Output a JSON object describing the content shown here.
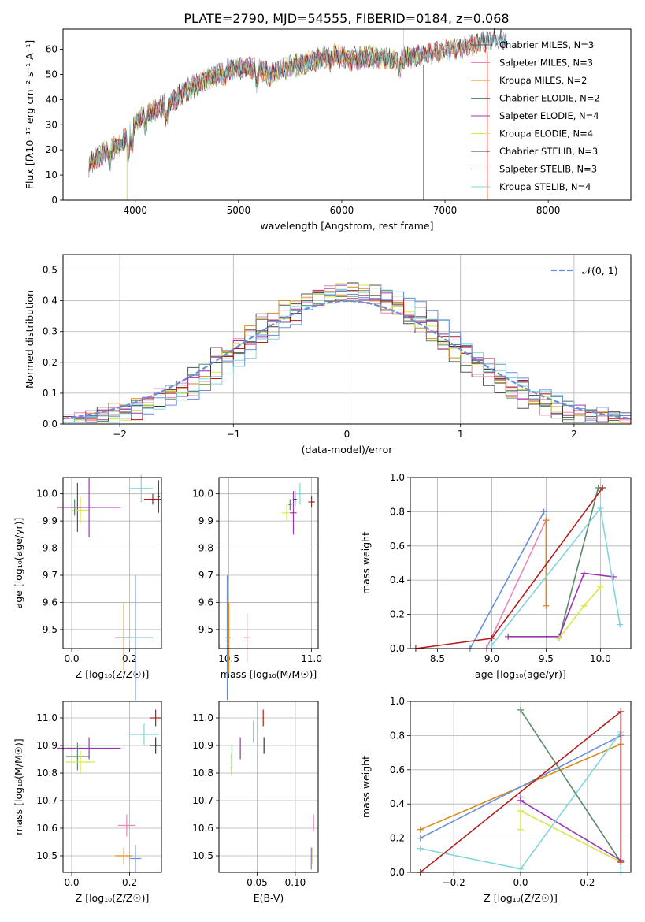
{
  "title": "PLATE=2790, MJD=54555, FIBERID=0184, z=0.068",
  "palette": [
    "#555555",
    "#e987b7",
    "#d98a1a",
    "#5c8a66",
    "#9b35b5",
    "#d7e64a",
    "#3a3a3a",
    "#b31d1d",
    "#7fd6dc"
  ],
  "chart_data": [
    {
      "type": "line",
      "id": "spectrum",
      "xlabel": "wavelength [Angstrom, rest frame]",
      "ylabel": "Flux [fλ10⁻¹⁷ erg cm⁻² s⁻¹ A⁻¹]",
      "xlim": [
        3300,
        8800
      ],
      "ylim": [
        0,
        68
      ],
      "xticks": [
        4000,
        5000,
        6000,
        7000,
        8000
      ],
      "yticks": [
        0,
        10,
        20,
        30,
        40,
        50,
        60
      ],
      "grid": false,
      "legend_position": "right",
      "continuum": {
        "x": [
          3550,
          3700,
          3850,
          3950,
          4050,
          4200,
          4350,
          4500,
          4700,
          4900,
          5100,
          5300,
          5500,
          5700,
          5900,
          6100,
          6300,
          6500,
          6700,
          6900,
          7100,
          7300,
          7500
        ],
        "y": [
          14,
          19,
          22,
          27,
          33,
          36,
          39,
          44,
          48,
          52,
          53,
          50,
          53,
          55,
          58,
          56,
          57,
          56,
          57,
          59,
          60,
          62,
          64
        ]
      },
      "series": [
        {
          "name": "Chabrier MILES, N_SSP=3",
          "color": "#555555",
          "x_end": 7600
        },
        {
          "name": "Salpeter MILES, N_SSP=3",
          "color": "#e987b7",
          "x_end": 7600
        },
        {
          "name": "Kroupa MILES, N_SSP=2",
          "color": "#d98a1a",
          "x_end": 7400
        },
        {
          "name": "Chabrier ELODIE, N_SSP=2",
          "color": "#5c8a66",
          "x_end": 6780
        },
        {
          "name": "Salpeter ELODIE, N_SSP=4",
          "color": "#9b35b5",
          "x_end": 6780
        },
        {
          "name": "Kroupa ELODIE, N_SSP=4",
          "color": "#d7e64a",
          "x_end": 6780
        },
        {
          "name": "Chabrier STELIB, N_SSP=3",
          "color": "#3a3a3a",
          "x_end": 7600
        },
        {
          "name": "Salpeter STELIB, N_SSP=3",
          "color": "#b31d1d",
          "x_end": 7400
        },
        {
          "name": "Kroupa STELIB, N_SSP=4",
          "color": "#7fd6dc",
          "x_end": 7600
        }
      ]
    },
    {
      "type": "line",
      "id": "residuals",
      "xlabel": "(data-model)/error",
      "ylabel": "Normed distribution",
      "xlim": [
        -2.5,
        2.5
      ],
      "ylim": [
        0,
        0.55
      ],
      "xticks": [
        -2,
        -1,
        0,
        1,
        2
      ],
      "xticklabels": [
        "−2",
        "−1",
        "0",
        "1",
        "2"
      ],
      "yticks": [
        0.0,
        0.1,
        0.2,
        0.3,
        0.4,
        0.5
      ],
      "grid": true,
      "legend_position": "top-right",
      "reference": {
        "name": "𝒩(0, 1)",
        "color": "#6a8fd6",
        "mean": 0,
        "sigma": 1
      },
      "histogram": {
        "bin_start": -2.5,
        "bin_width": 0.1,
        "amplitude": 0.43,
        "sigma": 0.9
      }
    },
    {
      "type": "scatter",
      "id": "age-vs-Z",
      "xlabel": "Z [log₁₀(Z/Z☉)]",
      "ylabel": "age  [log₁₀(age/yr)]",
      "xlim": [
        -0.03,
        0.31
      ],
      "ylim": [
        9.43,
        10.06
      ],
      "xticks": [
        0.0,
        0.2
      ],
      "yticks": [
        9.5,
        9.6,
        9.7,
        9.8,
        9.9,
        10.0
      ],
      "grid": true,
      "points": [
        {
          "color": "#555555",
          "x": 0.02,
          "y": 9.95,
          "xerr": 0.02,
          "yerr": 0.09
        },
        {
          "color": "#d7e64a",
          "x": 0.03,
          "y": 9.94,
          "xerr": 0.03,
          "yerr": 0.05
        },
        {
          "color": "#5c8a66",
          "x": 0.01,
          "y": 9.95,
          "xerr": 0.02,
          "yerr": 0.03
        },
        {
          "color": "#9b35b5",
          "x": 0.06,
          "y": 9.95,
          "xerr": 0.11,
          "yerr": 0.11
        },
        {
          "color": "#d98a1a",
          "x": 0.18,
          "y": 9.47,
          "xerr": 0.03,
          "yerr": 0.13
        },
        {
          "color": "#6a8fd6",
          "x": 0.22,
          "y": 9.47,
          "xerr": 0.06,
          "yerr": 0.23
        },
        {
          "color": "#7fd6dc",
          "x": 0.24,
          "y": 10.02,
          "xerr": 0.04,
          "yerr": 0.05
        },
        {
          "color": "#3a3a3a",
          "x": 0.3,
          "y": 9.99,
          "xerr": 0.005,
          "yerr": 0.06
        },
        {
          "color": "#b31d1d",
          "x": 0.28,
          "y": 9.98,
          "xerr": 0.03,
          "yerr": 0.02
        }
      ]
    },
    {
      "type": "scatter",
      "id": "age-vs-mass",
      "xlabel": "mass [log₁₀(M/M☉)]",
      "ylabel": "",
      "xlim": [
        10.44,
        11.04
      ],
      "ylim": [
        9.43,
        10.06
      ],
      "xticks": [
        10.5,
        11.0
      ],
      "yticks": [
        9.5,
        9.6,
        9.7,
        9.8,
        9.9,
        10.0
      ],
      "grid": true,
      "points": [
        {
          "color": "#6a8fd6",
          "x": 10.49,
          "y": 9.47,
          "xerr": 0.01,
          "yerr": 0.23
        },
        {
          "color": "#d98a1a",
          "x": 10.5,
          "y": 9.47,
          "xerr": 0.01,
          "yerr": 0.13
        },
        {
          "color": "#e987b7",
          "x": 10.61,
          "y": 9.47,
          "xerr": 0.02,
          "yerr": 0.09
        },
        {
          "color": "#d7e64a",
          "x": 10.85,
          "y": 9.93,
          "xerr": 0.03,
          "yerr": 0.03
        },
        {
          "color": "#9b35b5",
          "x": 10.89,
          "y": 9.93,
          "xerr": 0.02,
          "yerr": 0.08
        },
        {
          "color": "#5c8a66",
          "x": 10.87,
          "y": 9.96,
          "xerr": 0.01,
          "yerr": 0.02
        },
        {
          "color": "#7fd6dc",
          "x": 10.93,
          "y": 10.0,
          "xerr": 0.02,
          "yerr": 0.04
        },
        {
          "color": "#3a3a3a",
          "x": 10.9,
          "y": 9.98,
          "xerr": 0.01,
          "yerr": 0.03
        },
        {
          "color": "#b31d1d",
          "x": 11.0,
          "y": 9.97,
          "xerr": 0.02,
          "yerr": 0.02
        }
      ]
    },
    {
      "type": "line",
      "id": "weight-vs-age",
      "xlabel": "age  [log₁₀(age/yr)]",
      "ylabel": "mass weight",
      "xlim": [
        8.25,
        10.28
      ],
      "ylim": [
        0,
        1
      ],
      "xticks": [
        8.5,
        9.0,
        9.5,
        10.0
      ],
      "yticks": [
        0.0,
        0.2,
        0.4,
        0.6,
        0.8,
        1.0
      ],
      "grid": true,
      "series": [
        {
          "color": "#6a8fd6",
          "x": [
            8.8,
            9.48
          ],
          "y": [
            0.0,
            0.8
          ]
        },
        {
          "color": "#e987b7",
          "x": [
            8.95,
            9.5
          ],
          "y": [
            0.0,
            0.75
          ]
        },
        {
          "color": "#d98a1a",
          "x": [
            9.5,
            9.5
          ],
          "y": [
            0.25,
            0.75
          ]
        },
        {
          "color": "#5c8a66",
          "x": [
            9.62,
            9.98
          ],
          "y": [
            0.06,
            0.94
          ]
        },
        {
          "color": "#9b35b5",
          "x": [
            9.15,
            9.62,
            9.85,
            10.12
          ],
          "y": [
            0.07,
            0.07,
            0.44,
            0.42
          ]
        },
        {
          "color": "#d7e64a",
          "x": [
            9.62,
            9.85,
            10.0
          ],
          "y": [
            0.06,
            0.25,
            0.36
          ]
        },
        {
          "color": "#7fd6dc",
          "x": [
            9.0,
            10.0,
            10.18
          ],
          "y": [
            0.02,
            0.82,
            0.14
          ]
        },
        {
          "color": "#b31d1d",
          "x": [
            8.3,
            9.0,
            10.02
          ],
          "y": [
            0.0,
            0.06,
            0.94
          ]
        }
      ]
    },
    {
      "type": "scatter",
      "id": "mass-vs-Z",
      "xlabel": "Z [log₁₀(Z/Z☉)]",
      "ylabel": "mass [log₁₀(M/M☉)]",
      "xlim": [
        -0.03,
        0.31
      ],
      "ylim": [
        10.44,
        11.06
      ],
      "xticks": [
        0.0,
        0.2
      ],
      "yticks": [
        10.5,
        10.6,
        10.7,
        10.8,
        10.9,
        11.0
      ],
      "grid": true,
      "points": [
        {
          "color": "#9b35b5",
          "x": 0.06,
          "y": 10.89,
          "xerr": 0.11,
          "yerr": 0.04
        },
        {
          "color": "#5c8a66",
          "x": 0.02,
          "y": 10.86,
          "xerr": 0.04,
          "yerr": 0.05
        },
        {
          "color": "#d7e64a",
          "x": 0.03,
          "y": 10.84,
          "xerr": 0.05,
          "yerr": 0.04
        },
        {
          "color": "#e987b7",
          "x": 0.19,
          "y": 10.61,
          "xerr": 0.03,
          "yerr": 0.04
        },
        {
          "color": "#d98a1a",
          "x": 0.18,
          "y": 10.5,
          "xerr": 0.03,
          "yerr": 0.03
        },
        {
          "color": "#6a8fd6",
          "x": 0.22,
          "y": 10.49,
          "xerr": 0.02,
          "yerr": 0.05
        },
        {
          "color": "#7fd6dc",
          "x": 0.25,
          "y": 10.94,
          "xerr": 0.05,
          "yerr": 0.04
        },
        {
          "color": "#3a3a3a",
          "x": 0.29,
          "y": 10.9,
          "xerr": 0.02,
          "yerr": 0.03
        },
        {
          "color": "#b31d1d",
          "x": 0.29,
          "y": 11.0,
          "xerr": 0.02,
          "yerr": 0.03
        }
      ]
    },
    {
      "type": "scatter",
      "id": "mass-vs-ebv",
      "xlabel": "E(B-V)",
      "ylabel": "",
      "xlim": [
        0.0,
        0.13
      ],
      "ylim": [
        10.44,
        11.06
      ],
      "xticks": [
        0.05,
        0.1
      ],
      "yticks": [
        10.5,
        10.6,
        10.7,
        10.8,
        10.9,
        11.0
      ],
      "grid": true,
      "points": [
        {
          "color": "#5c8a66",
          "x": 0.017,
          "y": 10.86,
          "yerr": 0.04
        },
        {
          "color": "#d7e64a",
          "x": 0.016,
          "y": 10.83,
          "yerr": 0.04
        },
        {
          "color": "#9b35b5",
          "x": 0.028,
          "y": 10.89,
          "yerr": 0.04
        },
        {
          "color": "#7fd6dc",
          "x": 0.045,
          "y": 10.95,
          "yerr": 0.04
        },
        {
          "color": "#b31d1d",
          "x": 0.058,
          "y": 11.0,
          "yerr": 0.03
        },
        {
          "color": "#3a3a3a",
          "x": 0.059,
          "y": 10.9,
          "yerr": 0.03
        },
        {
          "color": "#e987b7",
          "x": 0.124,
          "y": 10.62,
          "yerr": 0.03
        },
        {
          "color": "#6a8fd6",
          "x": 0.121,
          "y": 10.49,
          "yerr": 0.04
        },
        {
          "color": "#d98a1a",
          "x": 0.123,
          "y": 10.5,
          "yerr": 0.03
        }
      ]
    },
    {
      "type": "line",
      "id": "weight-vs-Z",
      "xlabel": "Z [log₁₀(Z/Z☉)]",
      "ylabel": "mass weight",
      "xlim": [
        -0.33,
        0.33
      ],
      "ylim": [
        0,
        1
      ],
      "xticks": [
        -0.2,
        0.0,
        0.2
      ],
      "xticklabels": [
        "−0.2",
        "0.0",
        "0.2"
      ],
      "yticks": [
        0.0,
        0.2,
        0.4,
        0.6,
        0.8,
        1.0
      ],
      "grid": true,
      "series": [
        {
          "color": "#d98a1a",
          "x": [
            -0.3,
            0.3
          ],
          "y": [
            0.25,
            0.75
          ]
        },
        {
          "color": "#6a8fd6",
          "x": [
            -0.3,
            0.3
          ],
          "y": [
            0.2,
            0.8
          ]
        },
        {
          "color": "#5c8a66",
          "x": [
            0.0,
            0.3
          ],
          "y": [
            0.95,
            0.06
          ]
        },
        {
          "color": "#9b35b5",
          "x": [
            0.0,
            0.0,
            0.3
          ],
          "y": [
            0.44,
            0.42,
            0.07
          ]
        },
        {
          "color": "#d7e64a",
          "x": [
            0.0,
            0.0,
            0.3
          ],
          "y": [
            0.25,
            0.36,
            0.06
          ]
        },
        {
          "color": "#7fd6dc",
          "x": [
            -0.3,
            0.0,
            0.3,
            0.3
          ],
          "y": [
            0.14,
            0.02,
            0.82,
            0.0
          ]
        },
        {
          "color": "#b31d1d",
          "x": [
            -0.3,
            0.3,
            0.3
          ],
          "y": [
            0.0,
            0.94,
            0.06
          ]
        }
      ]
    }
  ]
}
